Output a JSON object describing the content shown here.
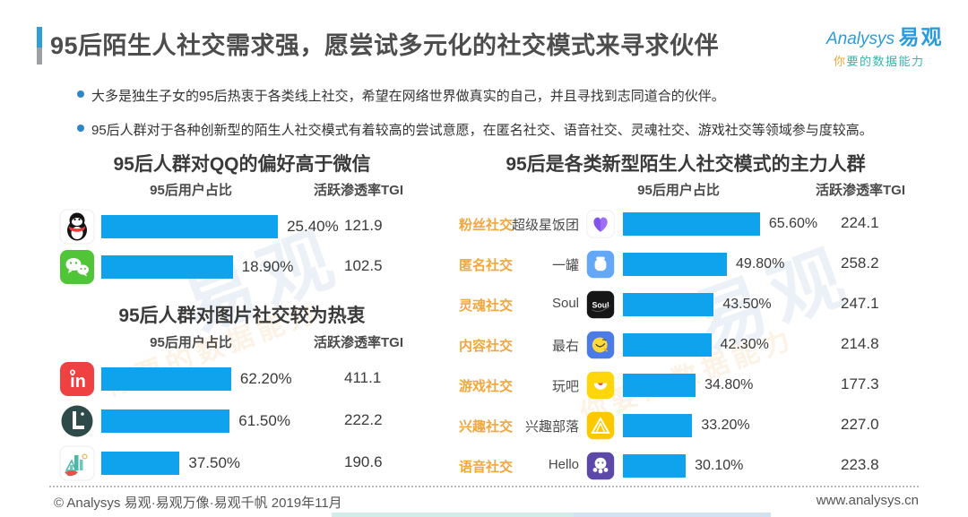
{
  "header": {
    "title": "95后陌生人社交需求强，愿尝试多元化的社交模式来寻求伙伴",
    "logo_brand": "Analysys",
    "logo_name": "易观",
    "logo_tagline_first": "你",
    "logo_tagline_rest": "要的数据能力"
  },
  "bullets": [
    "大多是独生子女的95后热衷于各类线上社交，希望在网络世界做真实的自己，并且寻找到志同道合的伙伴。",
    "95后人群对于各种创新型的陌生人社交模式有着较高的尝试意愿，在匿名社交、语音社交、灵魂社交、游戏社交等领域参与度较高。"
  ],
  "left_top": {
    "title": "95后人群对QQ的偏好高于微信",
    "col_share": "95后用户占比",
    "col_tgi": "活跃渗透率TGI",
    "rows": [
      {
        "icon": "qq-icon",
        "share": "25.40%",
        "share_value": 25.4,
        "tgi": "121.9"
      },
      {
        "icon": "wechat-icon",
        "share": "18.90%",
        "share_value": 18.9,
        "tgi": "102.5"
      }
    ]
  },
  "left_bottom": {
    "title": "95后人群对图片社交较为热衷",
    "col_share": "95后用户占比",
    "col_tgi": "活跃渗透率TGI",
    "rows": [
      {
        "icon": "in-app-icon",
        "share": "62.20%",
        "share_value": 62.2,
        "tgi": "411.1"
      },
      {
        "icon": "lofter-icon",
        "share": "61.50%",
        "share_value": 61.5,
        "tgi": "222.2"
      },
      {
        "icon": "city-photo-app-icon",
        "share": "37.50%",
        "share_value": 37.5,
        "tgi": "190.6"
      }
    ]
  },
  "right": {
    "title": "95后是各类新型陌生人社交模式的主力人群",
    "col_share": "95后用户占比",
    "col_tgi": "活跃渗透率TGI",
    "rows": [
      {
        "category": "粉丝社交",
        "app": "超级星饭团",
        "icon": "purple-heart-icon",
        "share": "65.60%",
        "share_value": 65.6,
        "tgi": "224.1"
      },
      {
        "category": "匿名社交",
        "app": "一罐",
        "icon": "jar-icon",
        "share": "49.80%",
        "share_value": 49.8,
        "tgi": "258.2"
      },
      {
        "category": "灵魂社交",
        "app": "Soul",
        "icon": "soul-app-icon",
        "share": "43.50%",
        "share_value": 43.5,
        "tgi": "247.1"
      },
      {
        "category": "内容社交",
        "app": "最右",
        "icon": "zuiyou-app-icon",
        "share": "42.30%",
        "share_value": 42.3,
        "tgi": "214.8"
      },
      {
        "category": "游戏社交",
        "app": "玩吧",
        "icon": "wanba-app-icon",
        "share": "34.80%",
        "share_value": 34.8,
        "tgi": "177.3"
      },
      {
        "category": "兴趣社交",
        "app": "兴趣部落",
        "icon": "tent-icon",
        "share": "33.20%",
        "share_value": 33.2,
        "tgi": "227.0"
      },
      {
        "category": "语音社交",
        "app": "Hello",
        "icon": "hello-app-icon",
        "share": "30.10%",
        "share_value": 30.1,
        "tgi": "223.8"
      }
    ]
  },
  "footer": {
    "copyright": "© Analysys 易观·易观万像·易观千帆 2019年11月",
    "website": "www.analysys.cn"
  },
  "watermark": {
    "text": "易观",
    "tagline": "你要的数据能力"
  },
  "colors": {
    "bar": "#0fa3ee",
    "category_label": "#f0a73e",
    "title_accent": "#2e9fd4",
    "logo_blue": "#2b9cd8",
    "tagline_teal": "#35b5ab",
    "tagline_orange": "#f0a73e"
  },
  "chart_data": [
    {
      "type": "bar",
      "title": "95后人群对QQ的偏好高于微信",
      "categories": [
        "qq-icon",
        "wechat-icon"
      ],
      "series": [
        {
          "name": "95后用户占比",
          "unit": "%",
          "values": [
            25.4,
            18.9
          ]
        },
        {
          "name": "活跃渗透率TGI",
          "values": [
            121.9,
            102.5
          ]
        }
      ],
      "orientation": "horizontal",
      "grid": false,
      "value_labels": true
    },
    {
      "type": "bar",
      "title": "95后人群对图片社交较为热衷",
      "categories": [
        "in-app-icon",
        "lofter-icon",
        "city-photo-app-icon"
      ],
      "series": [
        {
          "name": "95后用户占比",
          "unit": "%",
          "values": [
            62.2,
            61.5,
            37.5
          ]
        },
        {
          "name": "活跃渗透率TGI",
          "values": [
            411.1,
            222.2,
            190.6
          ]
        }
      ],
      "orientation": "horizontal",
      "grid": false,
      "value_labels": true
    },
    {
      "type": "bar",
      "title": "95后是各类新型陌生人社交模式的主力人群",
      "categories": [
        "粉丝社交 超级星饭团",
        "匿名社交 一罐",
        "灵魂社交 Soul",
        "内容社交 最右",
        "游戏社交 玩吧",
        "兴趣社交 兴趣部落",
        "语音社交 Hello"
      ],
      "series": [
        {
          "name": "95后用户占比",
          "unit": "%",
          "values": [
            65.6,
            49.8,
            43.5,
            42.3,
            34.8,
            33.2,
            30.1
          ]
        },
        {
          "name": "活跃渗透率TGI",
          "values": [
            224.1,
            258.2,
            247.1,
            214.8,
            177.3,
            227.0,
            223.8
          ]
        }
      ],
      "orientation": "horizontal",
      "grid": false,
      "value_labels": true
    }
  ]
}
